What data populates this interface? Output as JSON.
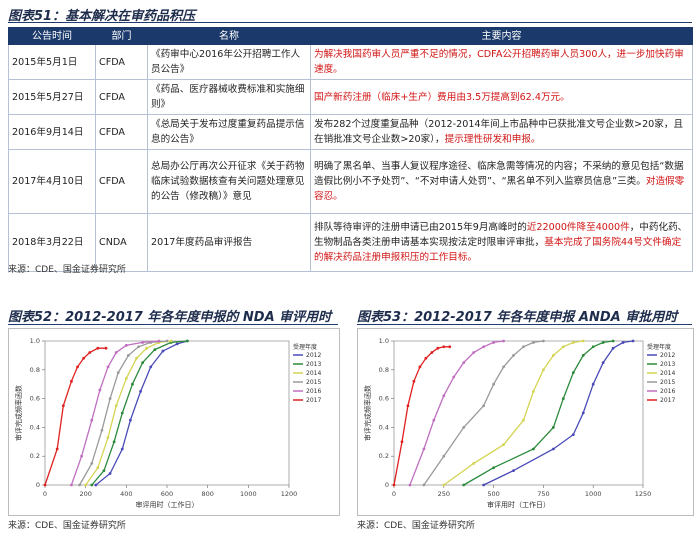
{
  "table51": {
    "title": "图表51：基本解决在审药品积压",
    "headers": [
      "公告时间",
      "部门",
      "名称",
      "主要内容"
    ],
    "rows": [
      {
        "date": "2015年5月1日",
        "dept": "CFDA",
        "name": "《药审中心2016年公开招聘工作人员公告》",
        "content": [
          {
            "text": "为解决我国药审人员严重不足的情况，CDFA公开招聘药审人员300人，进一步加快药审速度。",
            "red": true
          }
        ]
      },
      {
        "date": "2015年5月27日",
        "dept": "CFDA",
        "name": "《药品、医疗器械收费标准和实施细则》",
        "content": [
          {
            "text": "国产新药注册（临床+生产）费用由3.5万提高到62.4万元。",
            "red": true
          }
        ]
      },
      {
        "date": "2016年9月14日",
        "dept": "CFDA",
        "name": "《总局关于发布过度重复药品提示信息的公告》",
        "content": [
          {
            "text": "发布282个过度重复品种（2012-2014年间上市品种中已获批准文号企业数>20家，且在销批准文号企业数>20家），",
            "red": false
          },
          {
            "text": "提示理性研发和申报。",
            "red": true
          }
        ]
      },
      {
        "date": "2017年4月10日",
        "dept": "CFDA",
        "name": "总局办公厅再次公开征求《关于药物临床试验数据核查有关问题处理意见的公告（修改稿）》意见",
        "content": [
          {
            "text": "明确了黑名单、当事人复议程序途径、临床急需等情况的内容；不采纳的意见包括“数据造假比例小不予处罚”、“不对申请人处罚”、“黑名单不列入监察员信息”三类。",
            "red": false
          },
          {
            "text": "对造假零容忍。",
            "red": true
          }
        ]
      },
      {
        "date": "2018年3月22日",
        "dept": "CNDA",
        "name": "2017年度药品审评报告",
        "content": [
          {
            "text": "排队等待审评的注册申请已由2015年9月高峰时的",
            "red": false
          },
          {
            "text": "近22000件降至4000件",
            "red": true
          },
          {
            "text": "，中药化药、生物制品各类注册申请基本实现按法定时限审评审批，",
            "red": false
          },
          {
            "text": "基本完成了国务院44号文件确定的解决药品注册申报积压的工作目标。",
            "red": true
          }
        ]
      }
    ],
    "source": "来源：CDE、国金证券研究所"
  },
  "chart52": {
    "title": "图表52：2012-2017 年各年度申报的 NDA 审评用时",
    "source": "来源：CDE、国金证券研究所",
    "chart_data": {
      "type": "line",
      "title": "",
      "xlabel": "审评用时（工作日）",
      "ylabel": "审评完成频率函数",
      "xlim": [
        0,
        1200
      ],
      "ylim": [
        0,
        1.0
      ],
      "x_ticks": [
        "0",
        "200",
        "400",
        "600",
        "800",
        "1000",
        "1200"
      ],
      "y_ticks": [
        "0",
        "0.2",
        "0.4",
        "0.6",
        "0.8",
        "1.0"
      ],
      "legend_title": "受理年度",
      "legend_position": "top-right",
      "series": [
        {
          "name": "2012",
          "color": "#4a4ab8",
          "x": [
            250,
            320,
            380,
            420,
            470,
            520,
            580,
            650,
            700
          ],
          "y": [
            0,
            0.08,
            0.25,
            0.45,
            0.65,
            0.82,
            0.93,
            0.98,
            1.0
          ]
        },
        {
          "name": "2013",
          "color": "#2b8a3a",
          "x": [
            230,
            290,
            340,
            380,
            430,
            480,
            540,
            620,
            700
          ],
          "y": [
            0,
            0.1,
            0.3,
            0.5,
            0.7,
            0.85,
            0.94,
            0.99,
            1.0
          ]
        },
        {
          "name": "2014",
          "color": "#d4d452",
          "x": [
            200,
            260,
            310,
            350,
            400,
            450,
            500,
            560,
            620
          ],
          "y": [
            0,
            0.12,
            0.33,
            0.55,
            0.74,
            0.88,
            0.95,
            0.99,
            1.0
          ]
        },
        {
          "name": "2015",
          "color": "#9a9a9a",
          "x": [
            170,
            230,
            280,
            320,
            360,
            410,
            460,
            520,
            600
          ],
          "y": [
            0,
            0.15,
            0.38,
            0.6,
            0.78,
            0.9,
            0.96,
            0.99,
            1.0
          ]
        },
        {
          "name": "2016",
          "color": "#c06fc0",
          "x": [
            130,
            180,
            230,
            270,
            310,
            350,
            400,
            480,
            560
          ],
          "y": [
            0,
            0.2,
            0.45,
            0.66,
            0.82,
            0.92,
            0.97,
            0.99,
            1.0
          ]
        },
        {
          "name": "2017",
          "color": "#e02020",
          "x": [
            0,
            60,
            90,
            130,
            160,
            190,
            220,
            260,
            300
          ],
          "y": [
            0,
            0.25,
            0.55,
            0.72,
            0.82,
            0.88,
            0.92,
            0.95,
            0.95
          ]
        }
      ]
    }
  },
  "chart53": {
    "title": "图表53：2012-2017 年各年度申报 ANDA 审批用时",
    "source": "来源：CDE、国金证券研究所",
    "chart_data": {
      "type": "line",
      "title": "",
      "xlabel": "审评用时（工作日）",
      "ylabel": "审评完成频率函数",
      "xlim": [
        0,
        1250
      ],
      "ylim": [
        0,
        1.0
      ],
      "x_ticks": [
        "0",
        "250",
        "500",
        "750",
        "1000",
        "1250"
      ],
      "y_ticks": [
        "0",
        "0.2",
        "0.4",
        "0.6",
        "0.8",
        "1.0"
      ],
      "legend_title": "受理年度",
      "legend_position": "top-right",
      "series": [
        {
          "name": "2012",
          "color": "#4a4ab8",
          "x": [
            450,
            600,
            800,
            900,
            950,
            1000,
            1050,
            1100,
            1150,
            1200
          ],
          "y": [
            0,
            0.1,
            0.25,
            0.35,
            0.5,
            0.7,
            0.85,
            0.95,
            0.99,
            1.0
          ]
        },
        {
          "name": "2013",
          "color": "#2b8a3a",
          "x": [
            350,
            500,
            700,
            800,
            850,
            900,
            950,
            1000,
            1050,
            1100
          ],
          "y": [
            0,
            0.12,
            0.25,
            0.4,
            0.6,
            0.78,
            0.9,
            0.96,
            0.99,
            1.0
          ]
        },
        {
          "name": "2014",
          "color": "#d4d452",
          "x": [
            250,
            400,
            550,
            650,
            700,
            750,
            800,
            850,
            900,
            950
          ],
          "y": [
            0,
            0.15,
            0.28,
            0.45,
            0.65,
            0.8,
            0.9,
            0.96,
            0.99,
            1.0
          ]
        },
        {
          "name": "2015",
          "color": "#9a9a9a",
          "x": [
            150,
            250,
            350,
            450,
            500,
            550,
            600,
            650,
            700,
            750
          ],
          "y": [
            0,
            0.2,
            0.4,
            0.55,
            0.7,
            0.82,
            0.9,
            0.96,
            0.99,
            1.0
          ]
        },
        {
          "name": "2016",
          "color": "#c06fc0",
          "x": [
            80,
            150,
            200,
            250,
            300,
            350,
            400,
            450,
            500,
            550
          ],
          "y": [
            0,
            0.25,
            0.45,
            0.62,
            0.75,
            0.85,
            0.92,
            0.96,
            0.99,
            1.0
          ]
        },
        {
          "name": "2017",
          "color": "#e02020",
          "x": [
            0,
            40,
            70,
            100,
            130,
            160,
            190,
            220,
            250,
            280
          ],
          "y": [
            0,
            0.3,
            0.55,
            0.72,
            0.82,
            0.88,
            0.92,
            0.95,
            0.96,
            0.96
          ]
        }
      ]
    }
  }
}
